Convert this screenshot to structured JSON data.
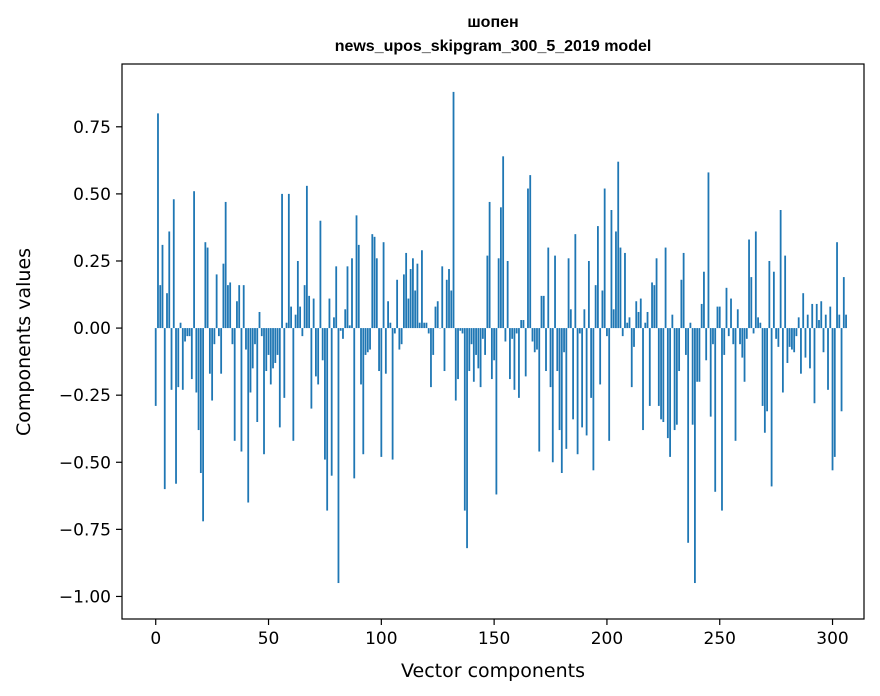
{
  "chart_data": {
    "type": "bar",
    "title": "шопен",
    "subtitle": "news_upos_skipgram_300_5_2019 model",
    "xlabel": "Vector components",
    "ylabel": "Components values",
    "xlim": [
      -14.95,
      313.95
    ],
    "ylim": [
      -1.084,
      0.984
    ],
    "xticks": [
      0,
      50,
      100,
      150,
      200,
      250,
      300
    ],
    "yticks": [
      -1.0,
      -0.75,
      -0.5,
      -0.25,
      0.0,
      0.25,
      0.5,
      0.75
    ],
    "ytick_labels": [
      "−1.00",
      "−0.75",
      "−0.50",
      "−0.25",
      "0.00",
      "0.25",
      "0.50",
      "0.75"
    ],
    "xtick_labels": [
      "0",
      "50",
      "100",
      "150",
      "200",
      "250",
      "300"
    ],
    "bar_color": "#1f77b4",
    "values": [
      -0.29,
      0.8,
      0.16,
      0.31,
      -0.6,
      0.13,
      0.36,
      -0.23,
      0.48,
      -0.58,
      -0.22,
      0.02,
      -0.23,
      -0.05,
      -0.03,
      -0.03,
      -0.19,
      0.51,
      -0.24,
      -0.38,
      -0.54,
      -0.72,
      0.32,
      0.3,
      -0.17,
      -0.27,
      -0.06,
      0.2,
      -0.03,
      -0.17,
      0.24,
      0.47,
      0.16,
      0.17,
      -0.06,
      -0.42,
      0.1,
      0.16,
      -0.46,
      0.16,
      -0.08,
      -0.65,
      -0.24,
      -0.15,
      -0.06,
      -0.35,
      0.06,
      -0.03,
      -0.47,
      -0.16,
      -0.1,
      -0.21,
      -0.15,
      -0.13,
      -0.1,
      -0.37,
      0.5,
      -0.26,
      0.02,
      0.5,
      0.08,
      -0.42,
      0.05,
      0.25,
      0.08,
      -0.03,
      0.16,
      0.53,
      0.12,
      -0.3,
      0.11,
      -0.18,
      -0.21,
      0.4,
      -0.12,
      -0.49,
      -0.68,
      0.11,
      -0.55,
      0.04,
      0.23,
      -0.95,
      -0.01,
      -0.04,
      0.07,
      0.23,
      0.01,
      0.26,
      -0.56,
      0.42,
      0.31,
      -0.21,
      -0.47,
      -0.1,
      -0.09,
      -0.08,
      0.35,
      0.34,
      0.26,
      -0.16,
      -0.48,
      0.32,
      -0.17,
      0.1,
      0.02,
      -0.49,
      -0.02,
      0.18,
      -0.08,
      -0.06,
      0.2,
      0.28,
      0.11,
      0.22,
      0.26,
      0.14,
      0.24,
      0.02,
      0.29,
      0.02,
      0.02,
      -0.02,
      -0.22,
      -0.1,
      0.08,
      0.1,
      0.0,
      0.23,
      -0.16,
      0.18,
      0.22,
      0.14,
      0.88,
      -0.27,
      -0.19,
      -0.01,
      -0.02,
      -0.68,
      -0.82,
      -0.16,
      -0.06,
      -0.2,
      -0.1,
      -0.15,
      -0.22,
      -0.04,
      -0.1,
      0.27,
      0.47,
      -0.19,
      -0.12,
      -0.62,
      0.26,
      0.45,
      0.64,
      -0.05,
      0.25,
      -0.19,
      -0.04,
      -0.23,
      -0.02,
      -0.26,
      0.03,
      0.03,
      -0.18,
      0.52,
      0.57,
      -0.05,
      -0.09,
      -0.08,
      -0.46,
      0.12,
      0.12,
      -0.16,
      0.3,
      -0.22,
      -0.5,
      0.27,
      -0.16,
      -0.38,
      -0.54,
      -0.09,
      -0.45,
      0.26,
      0.07,
      -0.34,
      0.35,
      -0.47,
      -0.02,
      -0.37,
      0.07,
      -0.4,
      0.25,
      -0.26,
      -0.53,
      0.16,
      0.38,
      -0.21,
      0.14,
      0.52,
      -0.03,
      -0.42,
      0.44,
      0.07,
      0.36,
      0.62,
      0.3,
      -0.03,
      0.28,
      0.02,
      0.04,
      -0.22,
      -0.07,
      0.1,
      0.06,
      0.11,
      -0.38,
      0.02,
      0.06,
      -0.29,
      0.17,
      0.16,
      0.26,
      -0.29,
      -0.34,
      -0.35,
      0.3,
      -0.41,
      -0.48,
      0.05,
      -0.38,
      -0.36,
      -0.16,
      0.18,
      0.28,
      -0.1,
      -0.8,
      0.02,
      -0.36,
      -0.95,
      -0.2,
      -0.2,
      0.09,
      0.21,
      -0.12,
      0.58,
      -0.33,
      -0.06,
      -0.61,
      0.08,
      0.08,
      -0.68,
      -0.1,
      0.15,
      -0.03,
      0.11,
      -0.06,
      -0.42,
      0.07,
      -0.06,
      -0.11,
      -0.2,
      -0.04,
      0.33,
      0.19,
      -0.02,
      0.36,
      0.04,
      0.02,
      -0.29,
      -0.39,
      -0.31,
      0.25,
      -0.59,
      0.21,
      -0.04,
      -0.07,
      0.44,
      -0.24,
      0.27,
      -0.13,
      -0.07,
      -0.08,
      -0.09,
      -0.03,
      0.04,
      -0.17,
      0.13,
      -0.11,
      0.05,
      -0.15,
      0.09,
      -0.28,
      0.09,
      0.03,
      0.1,
      -0.09,
      0.05,
      -0.23,
      0.08,
      -0.53,
      -0.48,
      0.32,
      0.05,
      -0.31,
      0.19,
      0.05
    ]
  }
}
